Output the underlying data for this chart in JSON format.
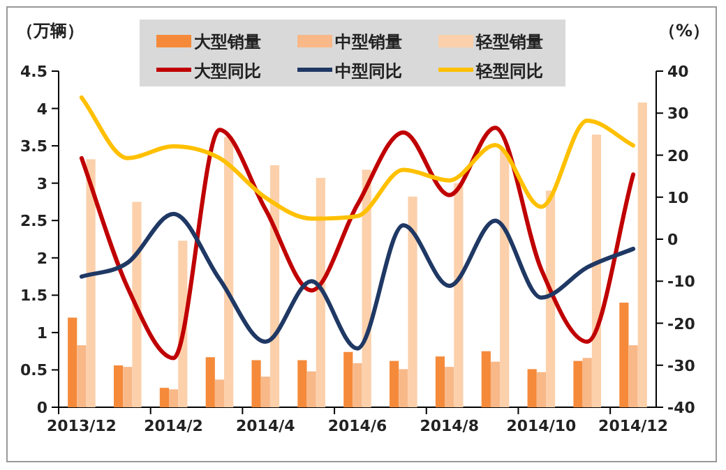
{
  "chart_data": {
    "type": "bar",
    "ylabel": "（万辆）",
    "y2label": "（%）",
    "categories": [
      "2013/12",
      null,
      "2014/2",
      null,
      "2014/4",
      null,
      "2014/6",
      null,
      "2014/8",
      null,
      "2014/10",
      null,
      "2014/12"
    ],
    "series": [
      {
        "name": "大型销量",
        "color": "#f58a3a",
        "values": [
          1.2,
          0.56,
          0.26,
          0.67,
          0.63,
          0.63,
          0.74,
          0.62,
          0.68,
          0.75,
          0.51,
          0.62,
          1.4
        ]
      },
      {
        "name": "中型销量",
        "color": "#f8b888",
        "values": [
          0.83,
          0.54,
          0.24,
          0.37,
          0.41,
          0.48,
          0.59,
          0.51,
          0.54,
          0.61,
          0.47,
          0.66,
          0.83
        ]
      },
      {
        "name": "轻型销量",
        "color": "#fbd0ab",
        "values": [
          3.32,
          2.75,
          2.23,
          3.62,
          3.24,
          3.07,
          3.18,
          2.82,
          3.0,
          3.45,
          2.9,
          3.65,
          4.08
        ]
      },
      {
        "name": "大型同比",
        "type": "line",
        "axis": "y2",
        "color": "#c00000",
        "values": [
          19.3,
          -11.5,
          -28.3,
          26,
          7.1,
          -12.2,
          8.2,
          25.4,
          10.5,
          26.5,
          -7.2,
          -24.4,
          15.4
        ]
      },
      {
        "name": "中型同比",
        "type": "line",
        "axis": "y2",
        "color": "#1f3864",
        "values": [
          -8.9,
          -5.6,
          6,
          -9.5,
          -24.4,
          -10,
          -26,
          3.3,
          -11.1,
          4.4,
          -13.9,
          -6.7,
          -2.3
        ]
      },
      {
        "name": "轻型同比",
        "type": "line",
        "axis": "y2",
        "color": "#ffc000",
        "values": [
          33.7,
          19.3,
          22.1,
          19.3,
          9.9,
          4.9,
          5.5,
          16.5,
          14,
          22.4,
          7.7,
          28.2,
          22.3
        ]
      }
    ],
    "ylim": [
      0,
      4.5
    ],
    "yticks": [
      0,
      0.5,
      1,
      1.5,
      2,
      2.5,
      3,
      3.5,
      4,
      4.5
    ],
    "y2lim": [
      -40,
      40
    ],
    "y2ticks": [
      -40,
      -30,
      -20,
      -10,
      0,
      10,
      20,
      30,
      40
    ],
    "legend": "top",
    "marker": "none",
    "line_style": "solid"
  }
}
